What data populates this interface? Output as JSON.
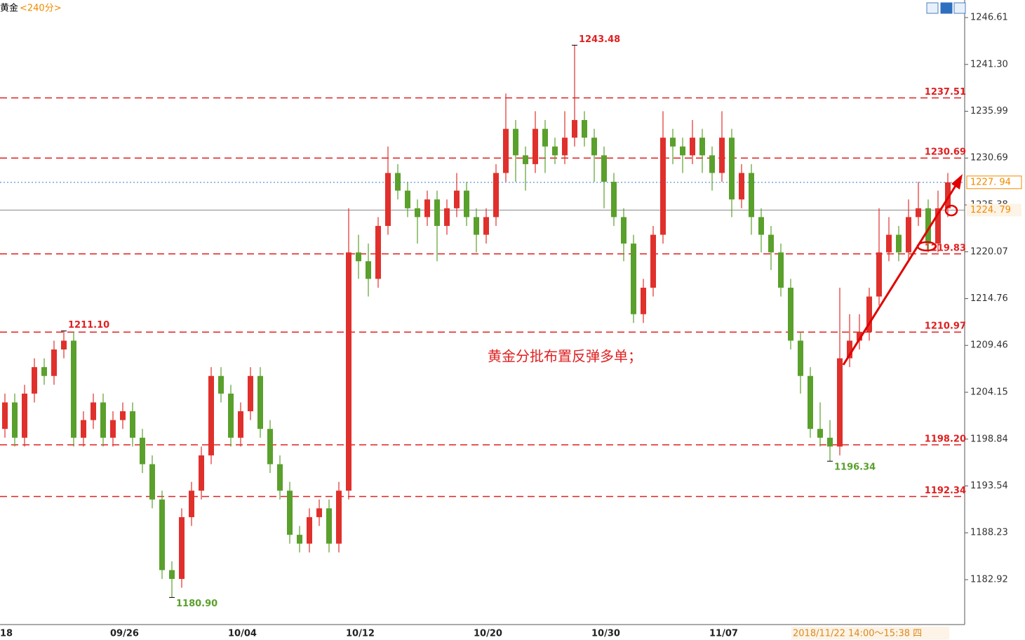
{
  "chart_data": {
    "type": "candlestick",
    "title": "黄金",
    "period": "<240分>",
    "annotation": "黄金分批布置反弹多单；",
    "footer": "2018/11/22 14:00～15:38 四",
    "up_color": "#e0302c",
    "down_color": "#5aa02c",
    "ylim": [
      1177.83,
      1248.6
    ],
    "yticks": [
      {
        "value": 1246.61,
        "label": "1246.61"
      },
      {
        "value": 1241.3,
        "label": "1241.30"
      },
      1235.99,
      1230.69,
      1225.38,
      1220.07,
      1214.76,
      1209.46,
      1204.15,
      1198.84,
      1193.54,
      1188.23,
      1182.92
    ],
    "levels": [
      1237.51,
      1230.69,
      1219.83,
      1210.97,
      {
        "value": 1198.2,
        "label": "1198.20"
      },
      1192.34
    ],
    "level_color": "#e02020",
    "last_price": {
      "value": 1227.94,
      "label": "1227. 94",
      "color": "#2a7fd4"
    },
    "ref_price": {
      "value": 1224.79,
      "label": "1224. 79",
      "color": "#888888"
    },
    "extremes": [
      {
        "index": 6,
        "label": "1211.10",
        "color": "#e02020"
      },
      {
        "index": 17,
        "label": "1180.90",
        "color": "#5aa02c"
      },
      {
        "index": 58,
        "label": "1243.48",
        "color": "#e02020"
      },
      {
        "index": 84,
        "label": "1196.34",
        "color": "#5aa02c"
      }
    ],
    "categories": [
      "18",
      null,
      null,
      null,
      null,
      null,
      null,
      null,
      null,
      null,
      null,
      null,
      "09/26",
      null,
      null,
      null,
      null,
      null,
      null,
      null,
      null,
      null,
      null,
      null,
      "10/04",
      null,
      null,
      null,
      null,
      null,
      null,
      null,
      null,
      null,
      null,
      null,
      "10/12",
      null,
      null,
      null,
      null,
      null,
      null,
      null,
      null,
      null,
      null,
      null,
      null,
      "10/20",
      null,
      null,
      null,
      null,
      null,
      null,
      null,
      null,
      null,
      null,
      null,
      "10/30",
      null,
      null,
      null,
      null,
      null,
      null,
      null,
      null,
      null,
      null,
      null,
      "11/07",
      null,
      null,
      null,
      null,
      null,
      null,
      null,
      null,
      null,
      null,
      null,
      null,
      null,
      null,
      null,
      null,
      null,
      null,
      null,
      null,
      null,
      null,
      null
    ],
    "ohlc": [
      [
        1200,
        1204,
        1199,
        1203
      ],
      [
        1203,
        1204,
        1198,
        1199
      ],
      [
        1199,
        1205,
        1198,
        1204
      ],
      [
        1204,
        1208,
        1203,
        1207
      ],
      [
        1207,
        1208,
        1205,
        1206
      ],
      [
        1206,
        1210,
        1205,
        1209
      ],
      [
        1209,
        1211.1,
        1208,
        1210
      ],
      [
        1210,
        1211,
        1198,
        1199
      ],
      [
        1199,
        1202,
        1198,
        1201
      ],
      [
        1201,
        1204,
        1200,
        1203
      ],
      [
        1203,
        1204,
        1198,
        1199
      ],
      [
        1199,
        1202,
        1198,
        1201
      ],
      [
        1201,
        1203,
        1200,
        1202
      ],
      [
        1202,
        1203,
        1198,
        1199
      ],
      [
        1199,
        1200,
        1195,
        1196
      ],
      [
        1196,
        1197,
        1191,
        1192
      ],
      [
        1192,
        1193,
        1183,
        1184
      ],
      [
        1184,
        1185,
        1180.9,
        1183
      ],
      [
        1183,
        1191,
        1182,
        1190
      ],
      [
        1190,
        1194,
        1189,
        1193
      ],
      [
        1193,
        1198,
        1192,
        1197
      ],
      [
        1197,
        1207,
        1196,
        1206
      ],
      [
        1206,
        1207,
        1203,
        1204
      ],
      [
        1204,
        1205,
        1198,
        1199
      ],
      [
        1199,
        1203,
        1198,
        1202
      ],
      [
        1202,
        1207,
        1201,
        1206
      ],
      [
        1206,
        1207,
        1199,
        1200
      ],
      [
        1200,
        1201,
        1195,
        1196
      ],
      [
        1196,
        1197,
        1192,
        1193
      ],
      [
        1193,
        1194,
        1187,
        1188
      ],
      [
        1188,
        1189,
        1186,
        1187
      ],
      [
        1187,
        1191,
        1186,
        1190
      ],
      [
        1190,
        1192,
        1189,
        1191
      ],
      [
        1191,
        1192,
        1186,
        1187
      ],
      [
        1187,
        1194,
        1186,
        1193
      ],
      [
        1193,
        1225,
        1192,
        1220
      ],
      [
        1220,
        1222,
        1217,
        1219
      ],
      [
        1219,
        1221,
        1215,
        1217
      ],
      [
        1217,
        1224,
        1216,
        1223
      ],
      [
        1223,
        1232,
        1222,
        1229
      ],
      [
        1229,
        1230,
        1226,
        1227
      ],
      [
        1227,
        1228,
        1224,
        1225
      ],
      [
        1225,
        1226,
        1221,
        1224
      ],
      [
        1224,
        1227,
        1223,
        1226
      ],
      [
        1226,
        1227,
        1219,
        1223
      ],
      [
        1223,
        1226,
        1222,
        1225
      ],
      [
        1225,
        1229,
        1224,
        1227
      ],
      [
        1227,
        1228,
        1223,
        1224
      ],
      [
        1224,
        1225,
        1220,
        1222
      ],
      [
        1222,
        1225,
        1221,
        1224
      ],
      [
        1224,
        1230,
        1223,
        1229
      ],
      [
        1229,
        1238,
        1228,
        1234
      ],
      [
        1234,
        1235,
        1228,
        1231
      ],
      [
        1231,
        1232,
        1227,
        1230
      ],
      [
        1230,
        1236,
        1229,
        1234
      ],
      [
        1234,
        1235,
        1229,
        1232
      ],
      [
        1232,
        1233,
        1230,
        1231
      ],
      [
        1231,
        1236,
        1230,
        1233
      ],
      [
        1233,
        1243.48,
        1232,
        1235
      ],
      [
        1235,
        1236,
        1232,
        1233
      ],
      [
        1233,
        1234,
        1228,
        1231
      ],
      [
        1231,
        1232,
        1225,
        1228
      ],
      [
        1228,
        1229,
        1223,
        1224
      ],
      [
        1224,
        1225,
        1219,
        1221
      ],
      [
        1221,
        1222,
        1212,
        1213
      ],
      [
        1213,
        1217,
        1212,
        1216
      ],
      [
        1216,
        1223,
        1215,
        1222
      ],
      [
        1222,
        1236,
        1221,
        1233
      ],
      [
        1233,
        1234,
        1230,
        1232
      ],
      [
        1232,
        1233,
        1229,
        1231
      ],
      [
        1231,
        1235,
        1230,
        1233
      ],
      [
        1233,
        1234,
        1229,
        1231
      ],
      [
        1231,
        1232,
        1227,
        1229
      ],
      [
        1229,
        1236,
        1228,
        1233
      ],
      [
        1233,
        1234,
        1224,
        1226
      ],
      [
        1226,
        1230,
        1225,
        1229
      ],
      [
        1229,
        1230,
        1222,
        1224
      ],
      [
        1224,
        1225,
        1220,
        1222
      ],
      [
        1222,
        1223,
        1218,
        1220
      ],
      [
        1220,
        1221,
        1215,
        1216
      ],
      [
        1216,
        1217,
        1209,
        1210
      ],
      [
        1210,
        1211,
        1204,
        1206
      ],
      [
        1206,
        1207,
        1199,
        1200
      ],
      [
        1200,
        1203,
        1198,
        1199
      ],
      [
        1199,
        1201,
        1196.34,
        1198
      ],
      [
        1198,
        1216,
        1197,
        1208
      ],
      [
        1208,
        1213,
        1207,
        1210
      ],
      [
        1210,
        1213,
        1209,
        1211
      ],
      [
        1211,
        1216,
        1210,
        1215
      ],
      [
        1215,
        1225,
        1214,
        1220
      ],
      [
        1220,
        1224,
        1219,
        1222
      ],
      [
        1222,
        1223,
        1219,
        1220
      ],
      [
        1220,
        1226,
        1219,
        1224
      ],
      [
        1224,
        1228,
        1223,
        1225
      ],
      [
        1225,
        1226,
        1220,
        1221
      ],
      [
        1221,
        1227,
        1220,
        1225
      ],
      [
        1225,
        1229,
        1224,
        1227.94
      ]
    ]
  }
}
